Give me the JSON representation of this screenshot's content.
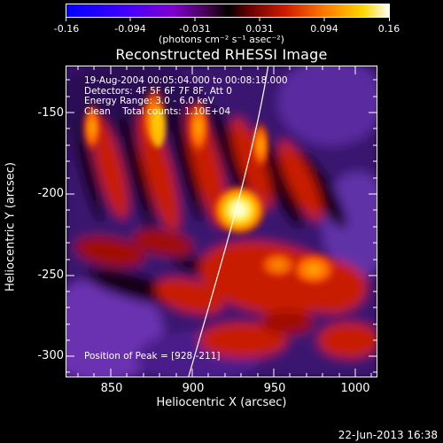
{
  "colorbar": {
    "ticks": [
      "-0.16",
      "-0.094",
      "-0.031",
      "0.031",
      "0.094",
      "0.16"
    ],
    "units": "(photons cm⁻² s⁻¹ asec⁻²)",
    "vmin": -0.16,
    "vmax": 0.16
  },
  "title": "Reconstructed RHESSI Image",
  "annotations": {
    "time_range": "19-Aug-2004 00:05:04.000 to 00:08:18.000",
    "detectors": "Detectors: 4F 5F 6F 7F 8F, Att 0",
    "energy_range": "Energy Range: 3.0 - 6.0 keV",
    "clean_counts": "Clean    Total counts: 1.10E+04",
    "peak_position": "Position of Peak = [928,-211]"
  },
  "axes": {
    "xlabel": "Heliocentric X (arcsec)",
    "ylabel": "Heliocentric Y (arcsec)",
    "x_ticks": [
      "850",
      "900",
      "950",
      "1000"
    ],
    "y_ticks": [
      "-150",
      "-200",
      "-250",
      "-300"
    ],
    "xlim": [
      822,
      1012
    ],
    "ylim": [
      -317,
      -124
    ]
  },
  "footer_date": "22-Jun-2013 16:38",
  "colors": {
    "background": "#000000",
    "colormap": [
      "#0000ff",
      "#3f00ff",
      "#7000c8",
      "#300030",
      "#000000",
      "#5a0000",
      "#c01a00",
      "#ff7800",
      "#ffd800",
      "#ffffff"
    ]
  }
}
